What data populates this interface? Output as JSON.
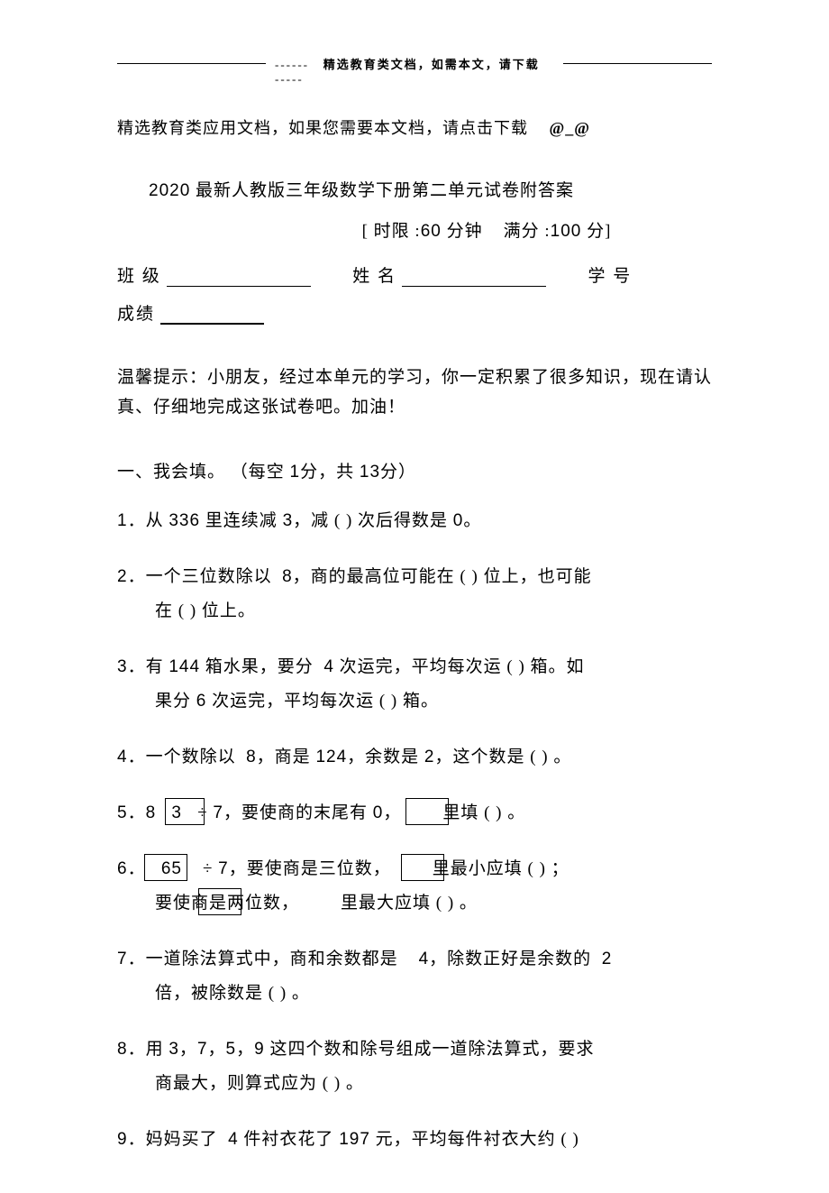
{
  "header": {
    "dashes_left": "------",
    "text": "精选教育类文档，如需本文，请下载",
    "dashes_right": "-----"
  },
  "intro": "精选教育类应用文档，如果您需要本文档，请点击下载",
  "at_symbol": "@_@",
  "title_year": "2020",
  "title_text": "最新人教版三年级数学下册第二单元试卷附答案",
  "exam_info": {
    "time_label": "[ 时限 :",
    "time_value": "60",
    "time_unit": "分钟",
    "score_label": "满分 :",
    "score_value": "100",
    "score_unit": "分]"
  },
  "student": {
    "class_label": "班 级",
    "name_label": "姓 名",
    "id_label": "学 号",
    "score_label": "成绩"
  },
  "tip": "温馨提示：小朋友，经过本单元的学习，你一定积累了很多知识，现在请认真、仔细地完成这张试卷吧。加油！",
  "section1": {
    "header_prefix": "一、我会填。",
    "header_detail_1": "（每空",
    "header_val_1": "1",
    "header_detail_2": "分，共",
    "header_val_2": "13",
    "header_detail_3": "分）"
  },
  "questions": {
    "q1": {
      "num": "1．",
      "p1": "从",
      "v1": "336",
      "p2": "里连续减",
      "v2": "3",
      "p3": "，减 (  )  次后得数是",
      "v3": "0",
      "p4": "。"
    },
    "q2": {
      "num": "2．",
      "p1": "一个三位数除以",
      "v1": "8",
      "p2": "，商的最高位可能在  (  )  位上，也可能",
      "line2": "在 (  )  位上。"
    },
    "q3": {
      "num": "3．",
      "p1": "有",
      "v1": "144",
      "p2": "箱水果，要分",
      "v2": "4",
      "p3": "次运完，平均每次运  (  )  箱。如",
      "line2_p1": "果分",
      "line2_v1": "6",
      "line2_p2": "次运完，平均每次运  (  )  箱。"
    },
    "q4": {
      "num": "4．",
      "p1": "一个数除以",
      "v1": "8",
      "p2": "，商是",
      "v2": "124",
      "p3": "，余数是",
      "v3": "2",
      "p4": "，这个数是 (  )  。"
    },
    "q5": {
      "num": "5．",
      "v1": "8",
      "v2": "3",
      "p1": "÷",
      "v3": "7",
      "p2": "，要使商的末尾有",
      "v4": "0，",
      "p3": "里填 (  )  。"
    },
    "q6": {
      "num": "6．",
      "v1": "65",
      "p1": "÷",
      "v2": "7",
      "p2": "，要使商是三位数，",
      "p3": "里最小应填  (  )  ；",
      "line2_p1": "要使商是两位数，",
      "line2_p2": "里最大应填  (  )  。"
    },
    "q7": {
      "num": "7．",
      "p1": "一道除法算式中，商和余数都是",
      "v1": "4",
      "p2": "，除数正好是余数的",
      "v2": "2",
      "line2": "倍，被除数是  (  )  。"
    },
    "q8": {
      "num": "8．",
      "p1": "用",
      "v1": "3",
      "p2": "，",
      "v2": "7",
      "p3": "，",
      "v3": "5",
      "p4": "，",
      "v4": "9",
      "p5": "这四个数和除号组成一道除法算式，要求",
      "line2": "商最大，则算式应为  (    )    。"
    },
    "q9": {
      "num": "9．",
      "p1": "妈妈买了",
      "v1": "4",
      "p2": "件衬衣花了",
      "v2": "197",
      "p3": "元，平均每件衬衣大约  (  )"
    }
  }
}
